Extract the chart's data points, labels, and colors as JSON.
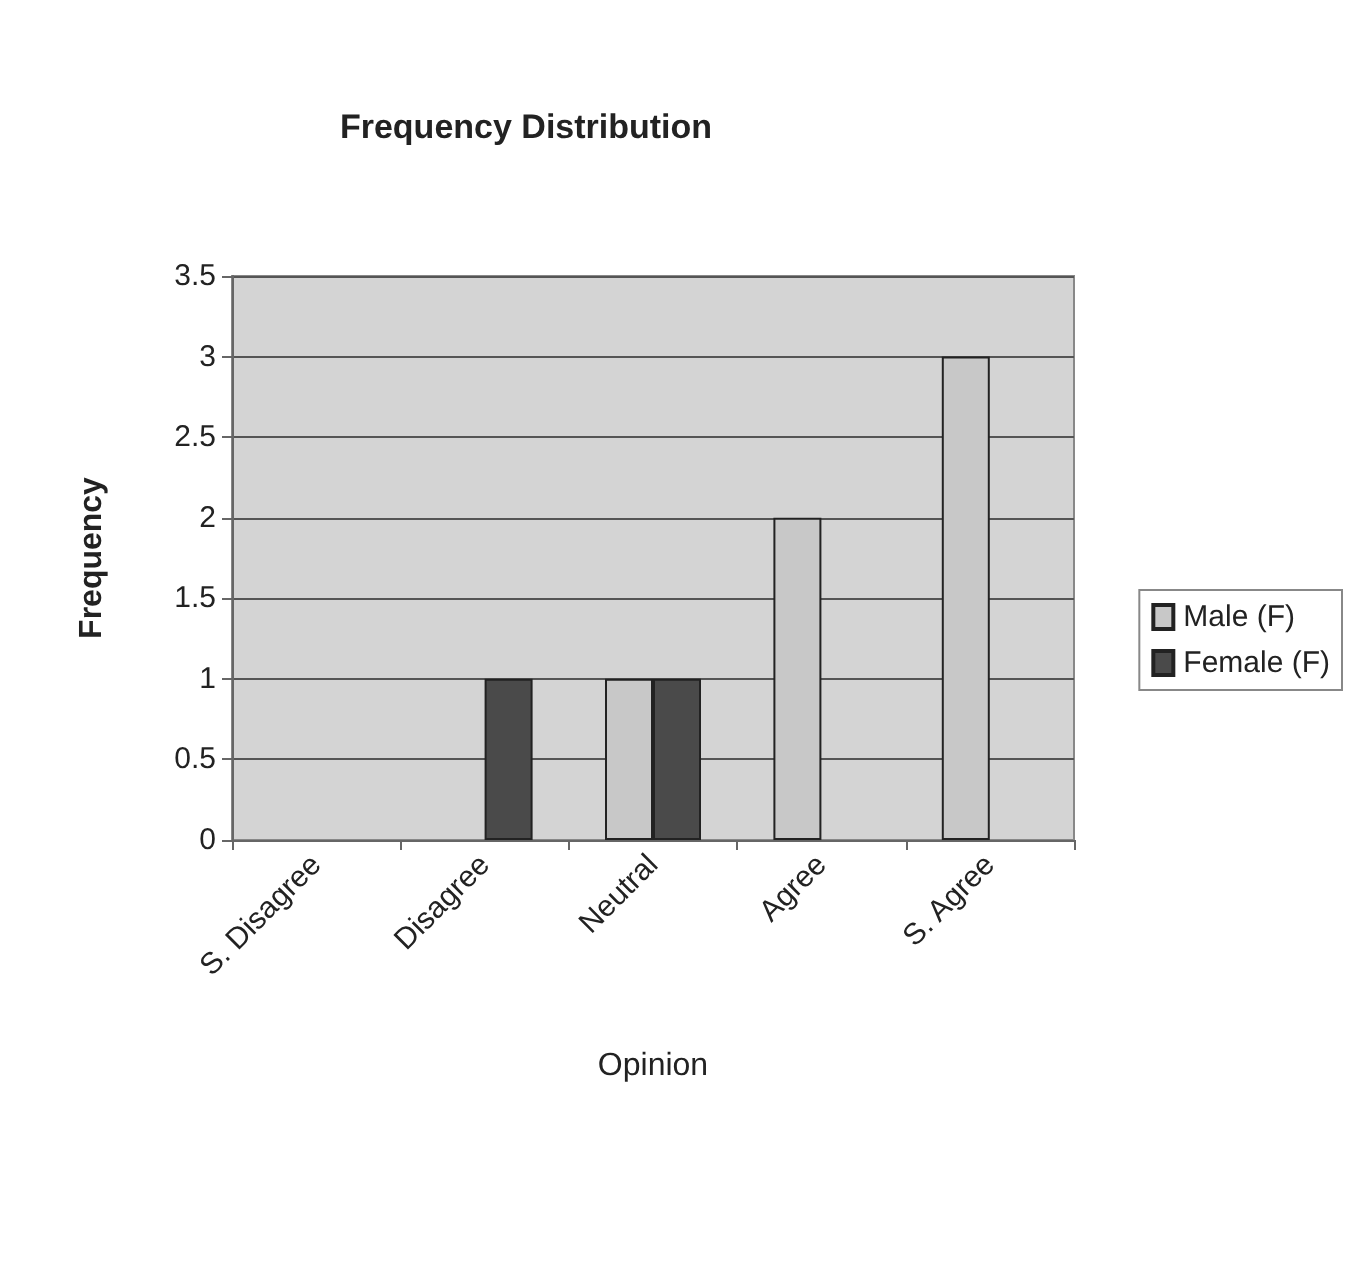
{
  "chart_data": {
    "type": "bar",
    "title": "Frequency Distribution",
    "xlabel": "Opinion",
    "ylabel": "Frequency",
    "categories": [
      "S. Disagree",
      "Disagree",
      "Neutral",
      "Agree",
      "S. Agree"
    ],
    "series": [
      {
        "name": "Male (F)",
        "color": "#c8c8c8",
        "values": [
          null,
          null,
          1,
          2,
          3
        ]
      },
      {
        "name": "Female (F)",
        "color": "#4a4a4a",
        "values": [
          null,
          1,
          1,
          null,
          null
        ]
      }
    ],
    "ylim": [
      0,
      3.5
    ],
    "yticks": [
      0,
      0.5,
      1,
      1.5,
      2,
      2.5,
      3,
      3.5
    ],
    "grid": "y",
    "legend": "right"
  }
}
